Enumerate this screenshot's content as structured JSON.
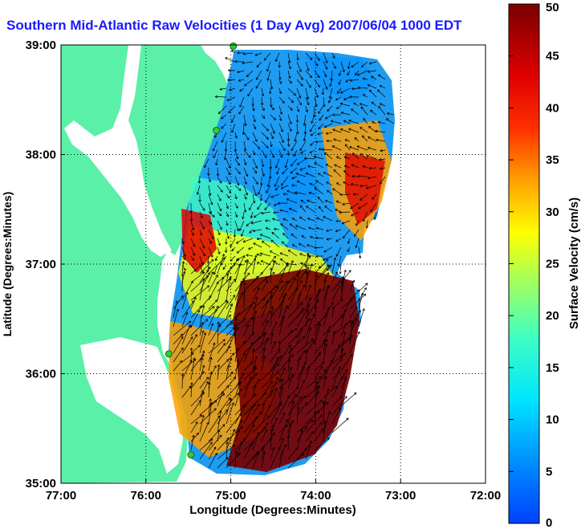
{
  "title": "Southern Mid-Atlantic Raw Velocities (1 Day Avg) 2007/06/04 1000 EDT",
  "map": {
    "xlabel": "Longitude (Degrees:Minutes)",
    "ylabel": "Latitude (Degrees:Minutes)",
    "lon_range": [
      -77,
      -72
    ],
    "lat_range": [
      35,
      39
    ],
    "x_ticks": [
      "77:00",
      "76:00",
      "75:00",
      "74:00",
      "73:00",
      "72:00"
    ],
    "y_ticks": [
      "39:00",
      "38:00",
      "37:00",
      "36:00",
      "35:00"
    ],
    "land_color": "#5af0a8",
    "water_color": "#ffffff",
    "stations": [
      {
        "lon": -74.97,
        "lat": 38.99
      },
      {
        "lon": -75.17,
        "lat": 38.22
      },
      {
        "lon": -75.73,
        "lat": 36.18
      },
      {
        "lon": -75.47,
        "lat": 35.26
      }
    ]
  },
  "colorbar": {
    "label": "Surface Velocity (cm/s)",
    "min": 0,
    "max": 50,
    "ticks": [
      "0",
      "5",
      "10",
      "15",
      "20",
      "25",
      "30",
      "35",
      "40",
      "45",
      "50"
    ],
    "colormap": "jet"
  }
}
